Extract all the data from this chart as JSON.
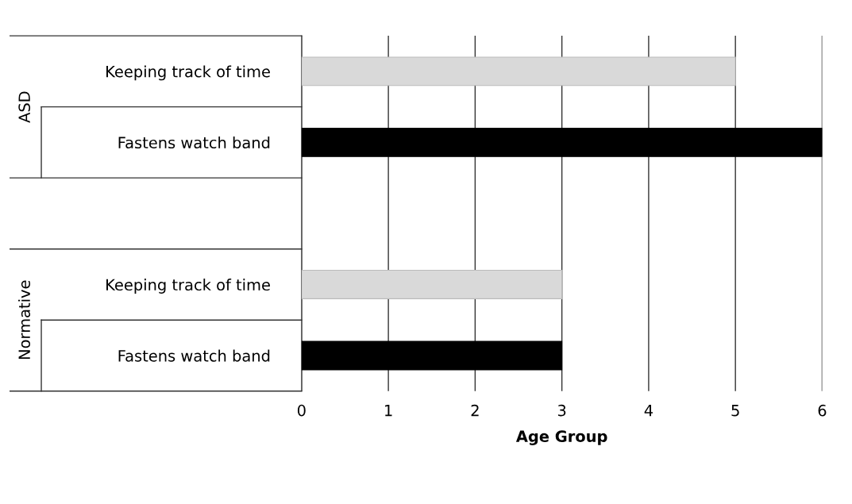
{
  "chart_data": {
    "type": "bar",
    "orientation": "horizontal",
    "xlabel": "Age Group",
    "categories": [
      "Keeping track of time",
      "Fastens watch band",
      null,
      "Keeping track of time",
      "Fastens watch band"
    ],
    "values": [
      5,
      6,
      null,
      3,
      3
    ],
    "colors": [
      "#d9d9d9",
      "#000000",
      null,
      "#d9d9d9",
      "#000000"
    ],
    "annotations": [
      "ASD",
      "Normative"
    ],
    "xlim": [
      0,
      6
    ],
    "xticks": [
      0,
      1,
      2,
      3,
      4,
      5,
      6
    ],
    "grid": "x"
  }
}
